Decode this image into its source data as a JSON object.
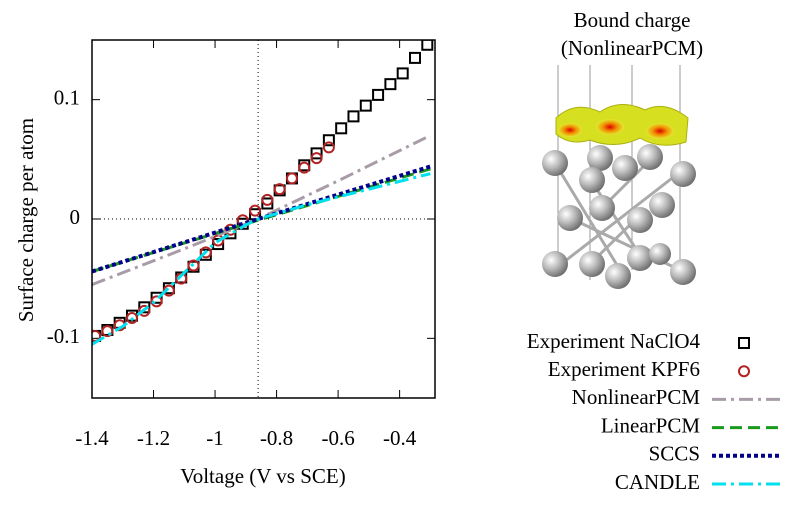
{
  "chart_data": {
    "type": "line",
    "xlabel": "Voltage (V vs SCE)",
    "ylabel": "Surface charge per atom",
    "xlim": [
      -1.4,
      -0.285
    ],
    "ylim": [
      -0.15,
      0.15
    ],
    "xticks": [
      -1.4,
      -1.2,
      -1,
      -0.8,
      -0.6,
      -0.4
    ],
    "yticks": [
      -0.1,
      0,
      0.1
    ],
    "reference_lines": {
      "x": -0.86,
      "y": 0
    },
    "inset_title": [
      "Bound charge",
      "(NonlinearPCM)"
    ],
    "series": [
      {
        "name": "Experiment NaClO4",
        "color": "#000000",
        "marker": "square",
        "x": [
          -1.39,
          -1.35,
          -1.31,
          -1.27,
          -1.23,
          -1.19,
          -1.15,
          -1.11,
          -1.07,
          -1.03,
          -0.99,
          -0.95,
          -0.91,
          -0.87,
          -0.83,
          -0.79,
          -0.75,
          -0.71,
          -0.67,
          -0.63,
          -0.59,
          -0.55,
          -0.51,
          -0.47,
          -0.43,
          -0.39,
          -0.35,
          -0.31
        ],
        "values": [
          -0.098,
          -0.093,
          -0.087,
          -0.081,
          -0.074,
          -0.066,
          -0.058,
          -0.049,
          -0.04,
          -0.03,
          -0.021,
          -0.012,
          -0.004,
          0.004,
          0.013,
          0.024,
          0.034,
          0.045,
          0.055,
          0.066,
          0.076,
          0.086,
          0.095,
          0.104,
          0.113,
          0.122,
          0.135,
          0.146
        ]
      },
      {
        "name": "Experiment KPF6",
        "color": "#b22222",
        "marker": "circle",
        "x": [
          -1.39,
          -1.35,
          -1.31,
          -1.27,
          -1.23,
          -1.19,
          -1.15,
          -1.11,
          -1.07,
          -1.03,
          -0.99,
          -0.95,
          -0.91,
          -0.87,
          -0.83,
          -0.79,
          -0.75,
          -0.71,
          -0.67,
          -0.63
        ],
        "values": [
          -0.098,
          -0.094,
          -0.089,
          -0.083,
          -0.077,
          -0.069,
          -0.06,
          -0.05,
          -0.039,
          -0.028,
          -0.018,
          -0.009,
          -0.001,
          0.007,
          0.016,
          0.025,
          0.034,
          0.043,
          0.051,
          0.06
        ]
      },
      {
        "name": "NonlinearPCM",
        "color": "#a89ca8",
        "dash": "14 5 3 5",
        "x": [
          -1.4,
          -1.1,
          -0.86,
          -0.6,
          -0.3
        ],
        "values": [
          -0.055,
          -0.025,
          0,
          0.032,
          0.07
        ]
      },
      {
        "name": "LinearPCM",
        "color": "#1a9a1a",
        "dash": "12 6",
        "x": [
          -1.4,
          -0.86,
          -0.3
        ],
        "values": [
          -0.044,
          -0.001,
          0.042
        ]
      },
      {
        "name": "SCCS",
        "color": "#00008b",
        "dash": "4 3",
        "x": [
          -1.4,
          -0.86,
          -0.3
        ],
        "values": [
          -0.044,
          0,
          0.044
        ]
      },
      {
        "name": "CANDLE",
        "color": "#00e0ee",
        "dash": "14 5 3 5",
        "x": [
          -1.4,
          -1.3,
          -1.2,
          -1.1,
          -1,
          -0.9,
          -0.86,
          -0.7,
          -0.5,
          -0.3
        ],
        "values": [
          -0.105,
          -0.09,
          -0.07,
          -0.045,
          -0.02,
          -0.005,
          0,
          0.012,
          0.025,
          0.038
        ]
      }
    ]
  }
}
